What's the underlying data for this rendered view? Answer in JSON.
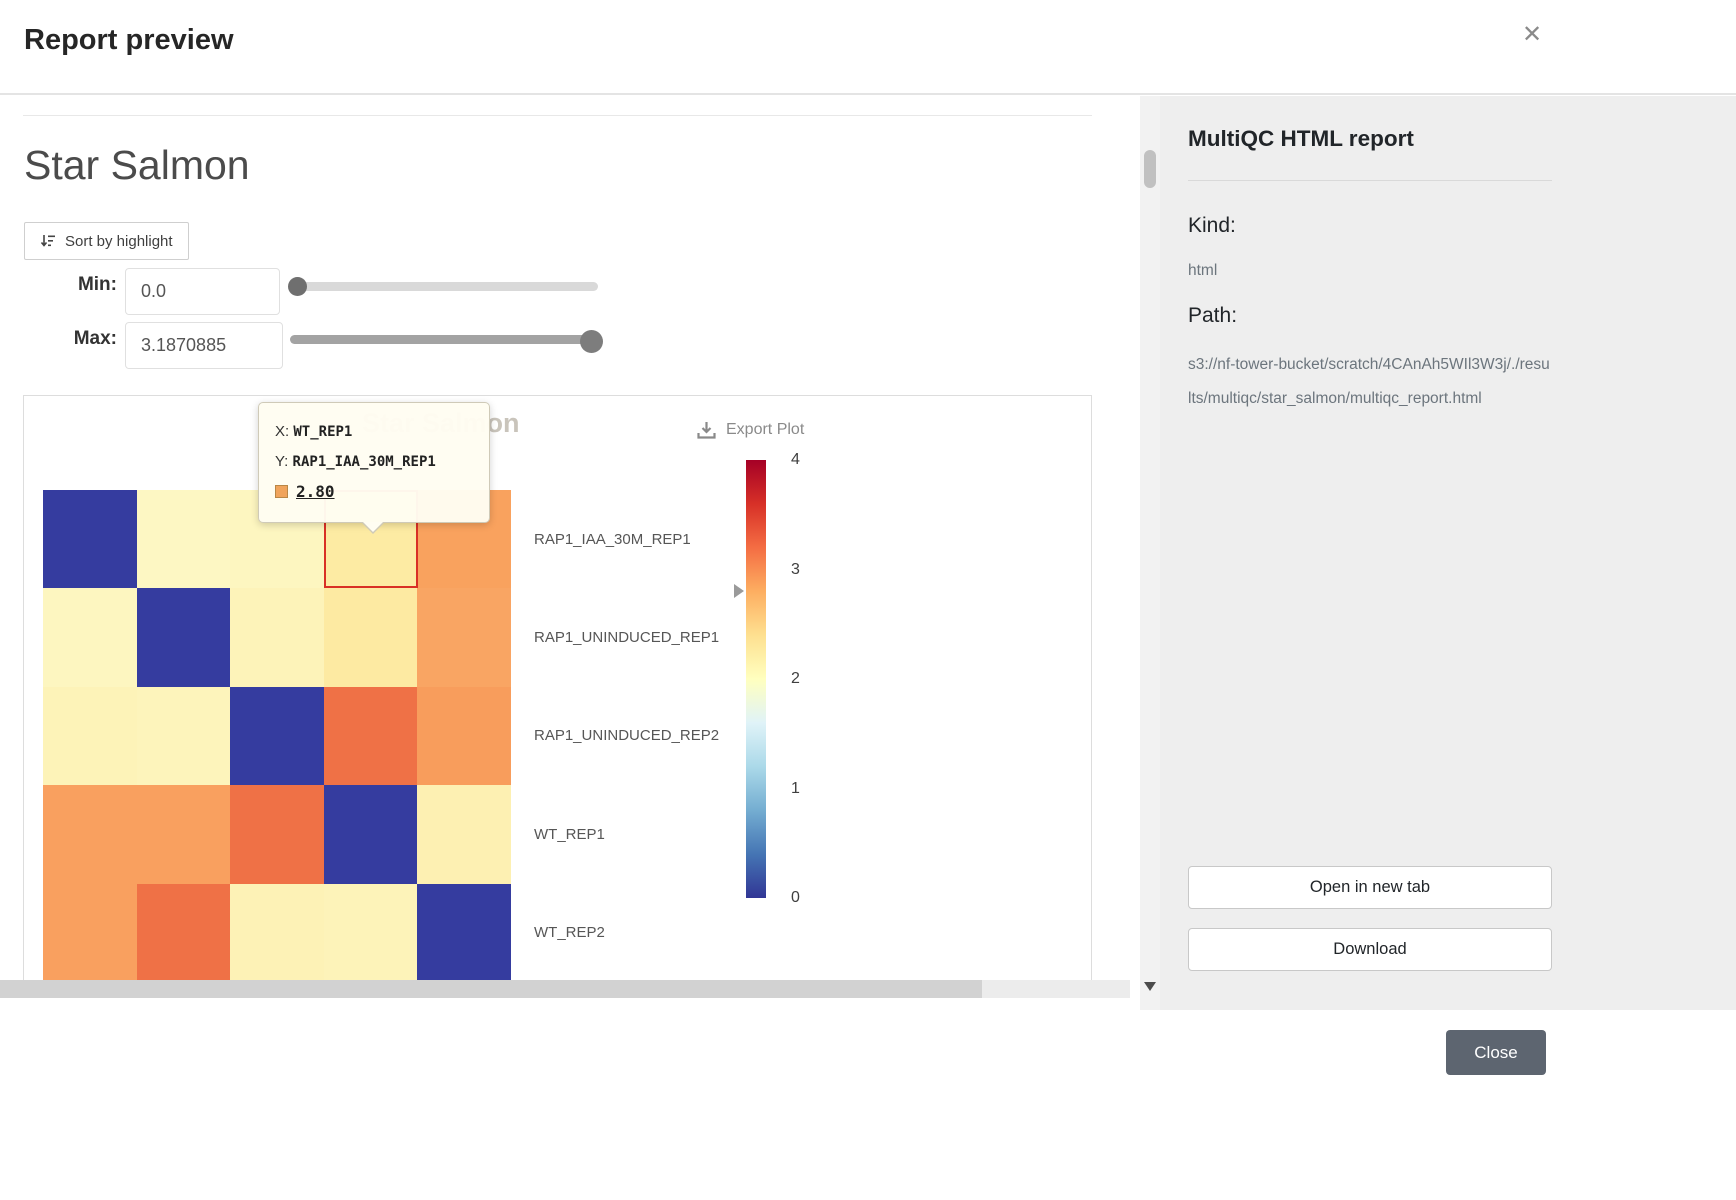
{
  "modal": {
    "title": "Report preview",
    "close_icon": "✕",
    "close_button_label": "Close"
  },
  "toolbar": {
    "sort_button_label": "Sort by highlight",
    "min_label": "Min:",
    "min_value": "0.0",
    "max_label": "Max:",
    "max_value": "3.1870885"
  },
  "plot": {
    "title": "Star Salmon",
    "export_label": "Export Plot",
    "tooltip": {
      "x_label": "X:",
      "x_value": "WT_REP1",
      "y_label": "Y:",
      "y_value": "RAP1_IAA_30M_REP1",
      "value_label": "2.80",
      "swatch_color": "#f0a45c"
    },
    "row_labels": [
      "RAP1_IAA_30M_REP1",
      "RAP1_UNINDUCED_REP1",
      "RAP1_UNINDUCED_REP2",
      "WT_REP1",
      "WT_REP2"
    ],
    "colorbar": {
      "ticks": [
        "4",
        "3",
        "2",
        "1",
        "0"
      ],
      "min": 0,
      "max": 4,
      "marker_value": 2.8,
      "gradient": [
        "#a50026",
        "#d73027",
        "#f46d43",
        "#fdae61",
        "#fee090",
        "#ffffbf",
        "#e0f3f8",
        "#abd9e9",
        "#74add1",
        "#4575b4",
        "#313695"
      ]
    },
    "heatmap": {
      "cell_colors": [
        [
          "#353c9f",
          "#fdf7c3",
          "#fdf6c0",
          "#fdeba3",
          "#f9a25e"
        ],
        [
          "#fdf6c0",
          "#353c9f",
          "#fdf3b9",
          "#fdeaa2",
          "#f9a563"
        ],
        [
          "#fdf3b8",
          "#fdf4bb",
          "#353c9f",
          "#ef7146",
          "#f89d5c"
        ],
        [
          "#f9a05f",
          "#f9a05f",
          "#ef7146",
          "#353c9f",
          "#fdf0b2"
        ],
        [
          "#f9a05f",
          "#ef7146",
          "#fdf2b6",
          "#fdf3b9",
          "#353c9f"
        ]
      ],
      "highlight": {
        "row": 0,
        "col": 3,
        "color": "#d93025"
      }
    }
  },
  "chart_data": {
    "type": "heatmap",
    "title": "Star Salmon",
    "x_categories": [
      "RAP1_IAA_30M_REP1",
      "RAP1_UNINDUCED_REP1",
      "RAP1_UNINDUCED_REP2",
      "WT_REP1",
      "WT_REP2"
    ],
    "y_categories": [
      "RAP1_IAA_30M_REP1",
      "RAP1_UNINDUCED_REP1",
      "RAP1_UNINDUCED_REP2",
      "WT_REP1",
      "WT_REP2"
    ],
    "values": [
      [
        0,
        2.1,
        2.1,
        2.8,
        3.0
      ],
      [
        2.1,
        0,
        2.1,
        2.5,
        3.0
      ],
      [
        2.1,
        2.1,
        0,
        3.2,
        3.0
      ],
      [
        2.8,
        2.5,
        3.2,
        0,
        2.2
      ],
      [
        3.0,
        3.0,
        2.2,
        2.2,
        0
      ]
    ],
    "zmin": 0,
    "zmax": 4,
    "colorscale": "RdYlBu reversed",
    "hovered_cell": {
      "x": "WT_REP1",
      "y": "RAP1_IAA_30M_REP1",
      "value": 2.8
    },
    "legend_position": "right colorbar"
  },
  "sidebar": {
    "title": "MultiQC HTML report",
    "kind_label": "Kind:",
    "kind_value": "html",
    "path_label": "Path:",
    "path_value": "s3://nf-tower-bucket/scratch/4CAnAh5WIl3W3j/./results/multiqc/star_salmon/multiqc_report.html",
    "open_button_label": "Open in new tab",
    "download_button_label": "Download"
  }
}
